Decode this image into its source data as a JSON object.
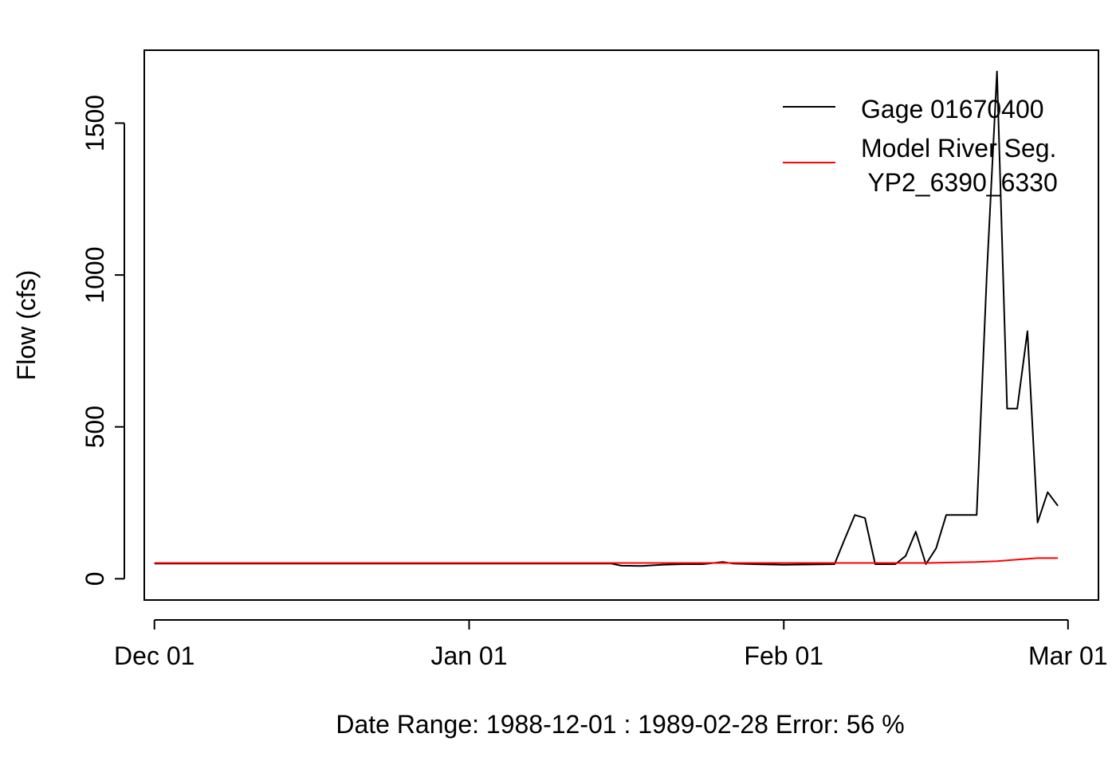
{
  "chart_data": {
    "type": "line",
    "title": "",
    "xlabel": "Date Range: 1988-12-01 : 1989-02-28   Error: 56 %",
    "ylabel": "Flow (cfs)",
    "x_start": "1988-12-01",
    "x_end": "1989-02-28",
    "xlim": [
      "1988-11-30",
      "1989-03-04"
    ],
    "ylim": [
      -70,
      1740
    ],
    "x_ticks": [
      {
        "date": "1988-12-01",
        "label": "Dec 01"
      },
      {
        "date": "1989-01-01",
        "label": "Jan 01"
      },
      {
        "date": "1989-02-01",
        "label": "Feb 01"
      },
      {
        "date": "1989-03-01",
        "label": "Mar 01"
      }
    ],
    "y_ticks": [
      0,
      500,
      1000,
      1500
    ],
    "grid": false,
    "legend": {
      "position": "top-right",
      "entries": [
        "Gage 01670400",
        "Model River Seg.",
        " YP2_6390_6330"
      ]
    },
    "series": [
      {
        "name": "Gage 01670400",
        "color": "#000000",
        "points": [
          [
            "1988-12-01",
            50
          ],
          [
            "1989-01-01",
            50
          ],
          [
            "1989-01-15",
            50
          ],
          [
            "1989-01-16",
            43
          ],
          [
            "1989-01-18",
            42
          ],
          [
            "1989-01-20",
            46
          ],
          [
            "1989-01-22",
            48
          ],
          [
            "1989-01-24",
            48
          ],
          [
            "1989-01-26",
            55
          ],
          [
            "1989-01-27",
            50
          ],
          [
            "1989-01-29",
            48
          ],
          [
            "1989-02-01",
            46
          ],
          [
            "1989-02-06",
            48
          ],
          [
            "1989-02-07",
            130
          ],
          [
            "1989-02-08",
            210
          ],
          [
            "1989-02-09",
            200
          ],
          [
            "1989-02-10",
            48
          ],
          [
            "1989-02-11",
            48
          ],
          [
            "1989-02-12",
            48
          ],
          [
            "1989-02-13",
            75
          ],
          [
            "1989-02-14",
            155
          ],
          [
            "1989-02-15",
            48
          ],
          [
            "1989-02-16",
            100
          ],
          [
            "1989-02-17",
            210
          ],
          [
            "1989-02-18",
            210
          ],
          [
            "1989-02-19",
            210
          ],
          [
            "1989-02-20",
            210
          ],
          [
            "1989-02-21",
            1000
          ],
          [
            "1989-02-22",
            1670
          ],
          [
            "1989-02-23",
            560
          ],
          [
            "1989-02-24",
            560
          ],
          [
            "1989-02-25",
            815
          ],
          [
            "1989-02-26",
            185
          ],
          [
            "1989-02-27",
            285
          ],
          [
            "1989-02-28",
            240
          ]
        ]
      },
      {
        "name": "Model River Seg.  YP2_6390_6330",
        "color": "#ff0000",
        "points": [
          [
            "1988-12-01",
            52
          ],
          [
            "1989-01-15",
            52
          ],
          [
            "1989-02-01",
            52
          ],
          [
            "1989-02-15",
            52
          ],
          [
            "1989-02-20",
            55
          ],
          [
            "1989-02-22",
            58
          ],
          [
            "1989-02-24",
            63
          ],
          [
            "1989-02-26",
            68
          ],
          [
            "1989-02-28",
            68
          ]
        ]
      }
    ]
  }
}
